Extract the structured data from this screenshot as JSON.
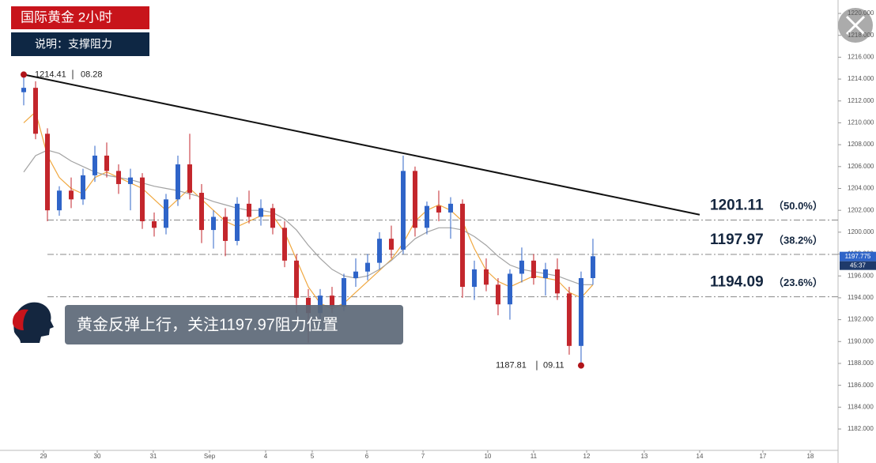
{
  "header": {
    "title": "国际黄金  2小时",
    "subtitle": "说明：支撑阻力"
  },
  "banner": "黄金反弹上行，关注1197.97阻力位置",
  "chart_data": {
    "type": "candlestick",
    "x": [
      0,
      1,
      2,
      3,
      4,
      5,
      6,
      7,
      8,
      9,
      10,
      11,
      12,
      13,
      14,
      15,
      16,
      17,
      18,
      19,
      20,
      21,
      22,
      23,
      24,
      25,
      26,
      27,
      28,
      29,
      30,
      31,
      32,
      33,
      34,
      35,
      36,
      37,
      38,
      39,
      40,
      41,
      42,
      43,
      44,
      45,
      46,
      47,
      48
    ],
    "open": [
      1212.8,
      1213.2,
      1209.0,
      1202.0,
      1203.8,
      1203.0,
      1205.2,
      1207.0,
      1205.6,
      1204.4,
      1205.0,
      1201.0,
      1200.4,
      1203.0,
      1206.2,
      1203.6,
      1200.2,
      1201.4,
      1199.2,
      1202.6,
      1201.4,
      1202.2,
      1200.4,
      1197.4,
      1194.0,
      1192.6,
      1194.2,
      1193.2,
      1195.8,
      1196.4,
      1197.2,
      1199.4,
      1198.4,
      1205.6,
      1200.4,
      1202.4,
      1201.8,
      1202.6,
      1195.0,
      1196.6,
      1195.2,
      1193.4,
      1196.2,
      1197.4,
      1195.8,
      1196.6,
      1194.4,
      1189.6,
      1195.8
    ],
    "high": [
      1214.41,
      1213.8,
      1209.5,
      1204.2,
      1205.0,
      1205.8,
      1207.9,
      1208.2,
      1206.2,
      1205.8,
      1205.4,
      1201.8,
      1203.5,
      1207.0,
      1209.0,
      1204.4,
      1202.0,
      1202.2,
      1203.2,
      1203.8,
      1203.0,
      1202.6,
      1201.0,
      1198.0,
      1194.8,
      1194.8,
      1195.0,
      1196.2,
      1197.6,
      1198.0,
      1200.0,
      1200.6,
      1207.0,
      1206.0,
      1202.8,
      1203.8,
      1203.2,
      1203.0,
      1197.4,
      1197.6,
      1195.8,
      1196.6,
      1198.6,
      1198.0,
      1197.2,
      1197.6,
      1195.0,
      1196.4,
      1199.4
    ],
    "low": [
      1211.6,
      1208.5,
      1201.0,
      1201.5,
      1202.2,
      1202.5,
      1204.6,
      1205.0,
      1203.5,
      1202.0,
      1200.3,
      1199.6,
      1199.8,
      1202.4,
      1203.0,
      1199.0,
      1198.5,
      1197.8,
      1198.8,
      1200.8,
      1200.6,
      1199.8,
      1196.8,
      1192.6,
      1189.9,
      1192.0,
      1192.6,
      1192.8,
      1195.0,
      1195.6,
      1196.6,
      1197.6,
      1198.0,
      1199.6,
      1199.8,
      1201.0,
      1199.4,
      1194.0,
      1193.8,
      1194.6,
      1192.4,
      1192.0,
      1195.4,
      1195.2,
      1194.2,
      1193.8,
      1188.8,
      1187.81,
      1195.2
    ],
    "close": [
      1213.2,
      1209.0,
      1202.0,
      1203.8,
      1203.0,
      1205.2,
      1207.0,
      1205.6,
      1204.4,
      1205.0,
      1201.0,
      1200.4,
      1203.0,
      1206.2,
      1203.6,
      1200.2,
      1201.4,
      1199.2,
      1202.6,
      1201.4,
      1202.2,
      1200.4,
      1197.4,
      1194.0,
      1192.6,
      1194.2,
      1193.2,
      1195.8,
      1196.4,
      1197.2,
      1199.4,
      1198.4,
      1205.6,
      1200.4,
      1202.4,
      1201.8,
      1202.6,
      1195.0,
      1196.6,
      1195.2,
      1193.4,
      1196.2,
      1197.4,
      1195.8,
      1196.6,
      1194.4,
      1189.6,
      1195.8,
      1197.8
    ],
    "up_color": "#2f64c8",
    "down_color": "#c3262c",
    "overlays": [
      {
        "color": "#f0a840",
        "values": [
          1210,
          1211,
          1207,
          1205,
          1204,
          1203.5,
          1205,
          1205.5,
          1205,
          1204.5,
          1204,
          1203,
          1202,
          1203,
          1204,
          1203,
          1202,
          1201,
          1200.5,
          1201,
          1201.5,
          1201.5,
          1200,
          1197.5,
          1195,
          1193.5,
          1193,
          1193.5,
          1194.5,
          1195.5,
          1196.5,
          1197.5,
          1199,
          1201,
          1202,
          1202.5,
          1202,
          1201,
          1198.5,
          1196.5,
          1195.5,
          1195,
          1195.5,
          1196,
          1195.8,
          1195.6,
          1194.5,
          1194,
          1195.2
        ]
      },
      {
        "color": "#a3a3a3",
        "values": [
          1205.5,
          1207,
          1207.5,
          1207.2,
          1206.5,
          1206,
          1205.5,
          1205.2,
          1205,
          1204.8,
          1204.5,
          1204.2,
          1204,
          1203.8,
          1203.5,
          1203.2,
          1202.8,
          1202.5,
          1202.2,
          1202,
          1202,
          1201.8,
          1201.2,
          1200.2,
          1198.8,
          1197.6,
          1196.6,
          1196,
          1195.8,
          1196,
          1196.6,
          1197.4,
          1198.4,
          1199.4,
          1200,
          1200.4,
          1200.4,
          1200.2,
          1199.6,
          1198.8,
          1197.8,
          1197,
          1196.6,
          1196.4,
          1196.2,
          1196,
          1195.6,
          1195.2,
          1195.2
        ]
      }
    ],
    "trendline": {
      "x": [
        0,
        57
      ],
      "y": [
        1214.41,
        1201.6
      ],
      "color": "#111111"
    },
    "levels": [
      {
        "price": 1201.11,
        "ratio": "（50.0%）"
      },
      {
        "price": 1197.97,
        "ratio": "（38.2%）"
      },
      {
        "price": 1194.09,
        "ratio": "（23.6%）"
      }
    ],
    "high_note": {
      "price": 1214.41,
      "date": "08.28"
    },
    "low_note": {
      "price": 1187.81,
      "date": "09.11"
    },
    "last_price": 1197.775,
    "countdown": "45:37",
    "xlim": [
      -2,
      68.67
    ],
    "xticks": [
      {
        "value": 1.67,
        "label": "29"
      },
      {
        "value": 6.2,
        "label": "30"
      },
      {
        "value": 10.93,
        "label": "31"
      },
      {
        "value": 15.67,
        "label": "Sep"
      },
      {
        "value": 20.4,
        "label": "4"
      },
      {
        "value": 24.33,
        "label": "5"
      },
      {
        "value": 28.93,
        "label": "6"
      },
      {
        "value": 33.67,
        "label": "7"
      },
      {
        "value": 39.13,
        "label": "10"
      },
      {
        "value": 43,
        "label": "11"
      },
      {
        "value": 47.47,
        "label": "12"
      },
      {
        "value": 52.33,
        "label": "13"
      },
      {
        "value": 57,
        "label": "14"
      },
      {
        "value": 62.33,
        "label": "17"
      },
      {
        "value": 66.33,
        "label": "18"
      }
    ],
    "ylim": [
      1180.05,
      1221.23
    ],
    "yticks": [
      {
        "value": 1182,
        "label": "1182.000"
      },
      {
        "value": 1184,
        "label": "1184.000"
      },
      {
        "value": 1186,
        "label": "1186.000"
      },
      {
        "value": 1188,
        "label": "1188.000"
      },
      {
        "value": 1190,
        "label": "1190.000"
      },
      {
        "value": 1192,
        "label": "1192.000"
      },
      {
        "value": 1194,
        "label": "1194.000"
      },
      {
        "value": 1196,
        "label": "1196.000"
      },
      {
        "value": 1198,
        "label": "1198.000"
      },
      {
        "value": 1200,
        "label": "1200.000"
      },
      {
        "value": 1202,
        "label": "1202.000"
      },
      {
        "value": 1204,
        "label": "1204.000"
      },
      {
        "value": 1206,
        "label": "1206.000"
      },
      {
        "value": 1208,
        "label": "1208.000"
      },
      {
        "value": 1210,
        "label": "1210.000"
      },
      {
        "value": 1212,
        "label": "1212.000"
      },
      {
        "value": 1214,
        "label": "1214.000"
      },
      {
        "value": 1216,
        "label": "1216.000"
      },
      {
        "value": 1218,
        "label": "1218.000"
      },
      {
        "value": 1220,
        "label": "1220.000"
      }
    ]
  }
}
